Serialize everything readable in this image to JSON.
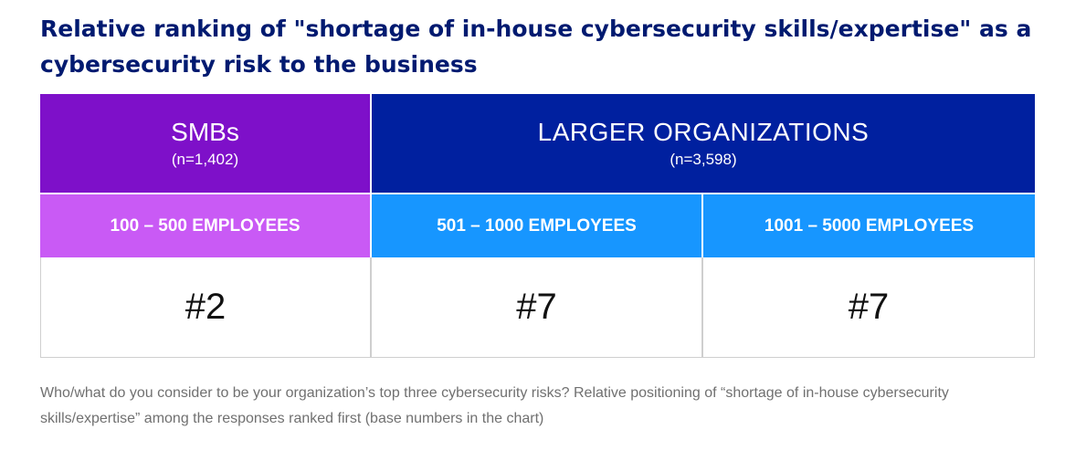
{
  "chart_data": {
    "type": "table",
    "title": "Relative ranking of \"shortage of in-house cybersecurity skills/expertise\" as a cybersecurity risk to the business",
    "groups": [
      {
        "label": "SMBs",
        "n": "(n=1,402)"
      },
      {
        "label": "LARGER ORGANIZATIONS",
        "n": "(n=3,598)"
      }
    ],
    "categories": [
      "100 – 500 EMPLOYEES",
      "501 – 1000 EMPLOYEES",
      "1001 – 5000 EMPLOYEES"
    ],
    "rank_labels": [
      "#2",
      "#7",
      "#7"
    ],
    "values": [
      2,
      7,
      7
    ],
    "footnote": "Who/what do you consider to be your organization’s top three cybersecurity risks? Relative positioning of “shortage of in-house cybersecurity skills/expertise” among the responses ranked first (base numbers in the chart)"
  },
  "colors": {
    "title": "#001a70",
    "smb_header": "#7e10c9",
    "smb_sub": "#c95af5",
    "large_header": "#00209f",
    "large_sub": "#1796ff"
  }
}
